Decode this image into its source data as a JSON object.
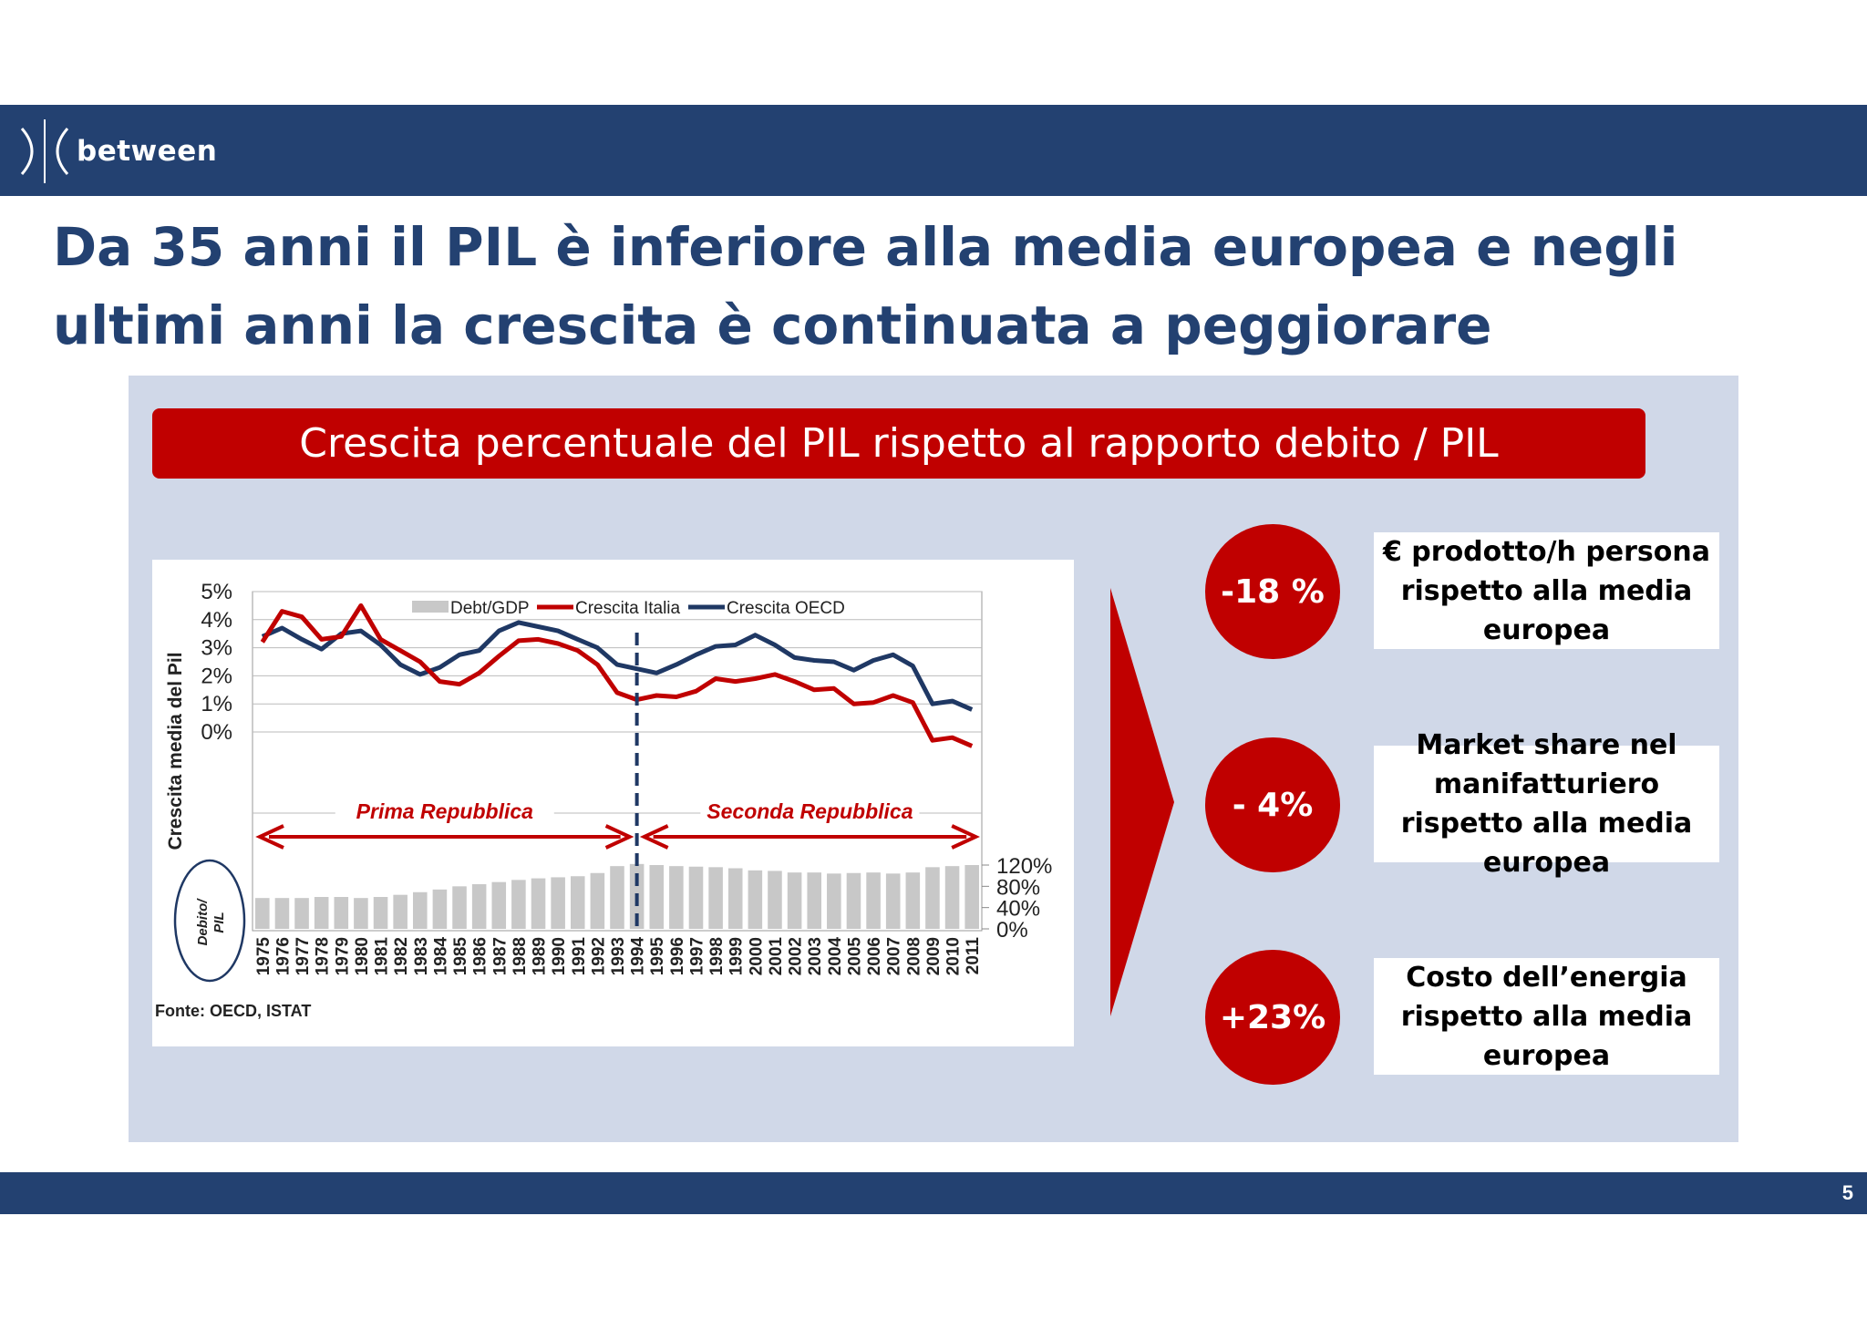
{
  "logo": {
    "text": "between"
  },
  "title": "Da 35 anni il PIL è inferiore alla media europea e negli ultimi anni la crescita è continuata a peggiorare",
  "banner": "Crescita percentuale del PIL rispetto al rapporto debito / PIL",
  "colors": {
    "navy": "#234171",
    "red": "#c00000",
    "panel": "#d0d8e8",
    "oecd_line": "#1f3864",
    "italy_line": "#c00000",
    "bars": "#c8c8c8"
  },
  "chart_data": {
    "type": "line",
    "ylabel": "Crescita media del Pil",
    "ylim": [
      0,
      5
    ],
    "yticks": [
      "5%",
      "4%",
      "3%",
      "2%",
      "1%",
      "0%"
    ],
    "bar_ylabel": "Debito/ PIL",
    "bar_ylim": [
      0,
      120
    ],
    "bar_yticks": [
      "120%",
      "80%",
      "40%",
      "0%"
    ],
    "legend": [
      "Debt/GDP",
      "Crescita Italia",
      "Crescita OECD"
    ],
    "x": [
      "1975",
      "1976",
      "1977",
      "1978",
      "1979",
      "1980",
      "1981",
      "1982",
      "1983",
      "1984",
      "1985",
      "1986",
      "1987",
      "1988",
      "1989",
      "1990",
      "1991",
      "1992",
      "1993",
      "1994",
      "1995",
      "1996",
      "1997",
      "1998",
      "1999",
      "2000",
      "2001",
      "2002",
      "2003",
      "2004",
      "2005",
      "2006",
      "2007",
      "2008",
      "2009",
      "2010",
      "2011"
    ],
    "series": [
      {
        "name": "Crescita Italia",
        "values": [
          3.2,
          4.3,
          4.1,
          3.3,
          3.4,
          4.5,
          3.3,
          2.9,
          2.5,
          1.8,
          1.7,
          2.1,
          2.7,
          3.25,
          3.3,
          3.15,
          2.9,
          2.4,
          1.4,
          1.15,
          1.3,
          1.25,
          1.45,
          1.9,
          1.8,
          1.9,
          2.05,
          1.8,
          1.5,
          1.55,
          1.0,
          1.05,
          1.3,
          1.05,
          -0.3,
          -0.2,
          -0.5
        ]
      },
      {
        "name": "Crescita OECD",
        "values": [
          3.4,
          3.7,
          3.3,
          2.95,
          3.5,
          3.6,
          3.1,
          2.4,
          2.05,
          2.3,
          2.75,
          2.9,
          3.6,
          3.9,
          3.75,
          3.6,
          3.3,
          3.0,
          2.4,
          2.25,
          2.1,
          2.4,
          2.75,
          3.05,
          3.1,
          3.45,
          3.1,
          2.65,
          2.55,
          2.5,
          2.2,
          2.55,
          2.75,
          2.35,
          1.0,
          1.1,
          0.8
        ]
      },
      {
        "name": "Debt/GDP",
        "values": [
          58,
          58,
          58,
          60,
          60,
          58,
          60,
          64,
          69,
          74,
          80,
          84,
          88,
          92,
          95,
          97,
          99,
          105,
          118,
          122,
          120,
          118,
          117,
          116,
          114,
          110,
          109,
          106,
          106,
          104,
          105,
          106,
          104,
          106,
          116,
          118,
          120
        ]
      }
    ],
    "periods": [
      {
        "label": "Prima Repubblica",
        "from": "1975",
        "to": "1993"
      },
      {
        "label": "Seconda Repubblica",
        "from": "1994",
        "to": "2011"
      }
    ],
    "divider_year": "1994",
    "source": "Fonte: OECD, ISTAT"
  },
  "kpis": [
    {
      "value": "-18 %",
      "label": "€ prodotto/h persona rispetto alla media europea"
    },
    {
      "value": "- 4%",
      "label": "Market share nel manifatturiero rispetto alla media europea"
    },
    {
      "value": "+23%",
      "label": "Costo dell’energia rispetto alla media europea"
    }
  ],
  "page_number": "5"
}
